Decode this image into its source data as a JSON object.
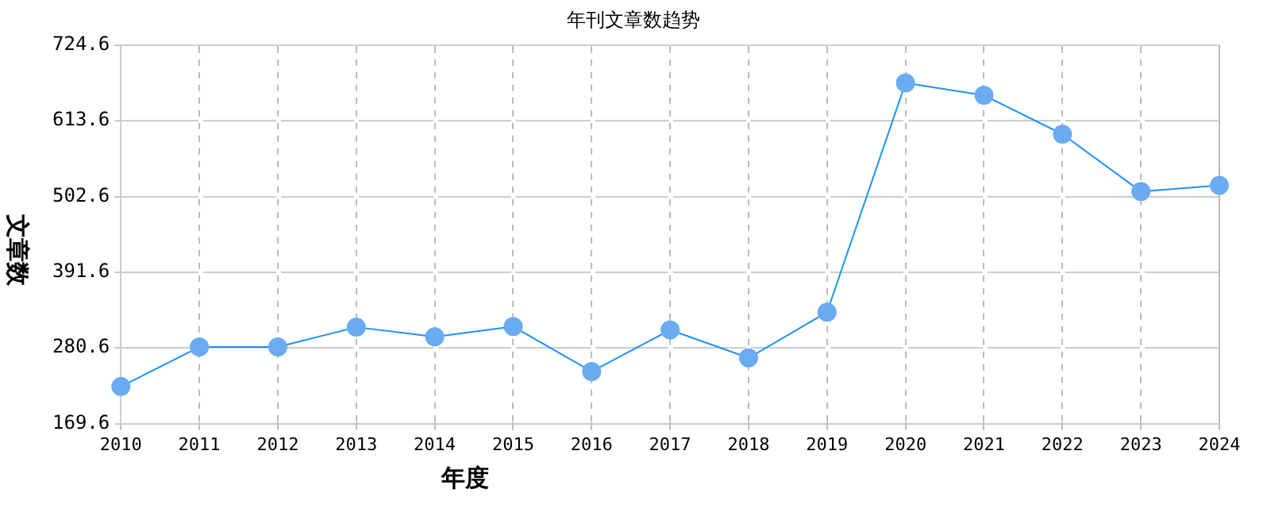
{
  "chart_data": {
    "type": "line",
    "title": "年刊文章数趋势",
    "xlabel": "年度",
    "ylabel": "文章数",
    "categories": [
      "2010",
      "2011",
      "2012",
      "2013",
      "2014",
      "2015",
      "2016",
      "2017",
      "2018",
      "2019",
      "2020",
      "2021",
      "2022",
      "2023",
      "2024"
    ],
    "series": [
      {
        "color": "#1e90ff",
        "values": [
          224,
          282,
          282,
          311,
          297,
          312,
          246,
          307,
          266,
          333,
          669,
          651,
          594,
          510,
          519
        ]
      }
    ],
    "ylim": [
      169.6,
      724.6
    ],
    "yticks": [
      169.6,
      280.6,
      391.6,
      502.6,
      613.6,
      724.6
    ],
    "grid": true,
    "legend": false,
    "marker": "circle",
    "line_style": "solid"
  }
}
